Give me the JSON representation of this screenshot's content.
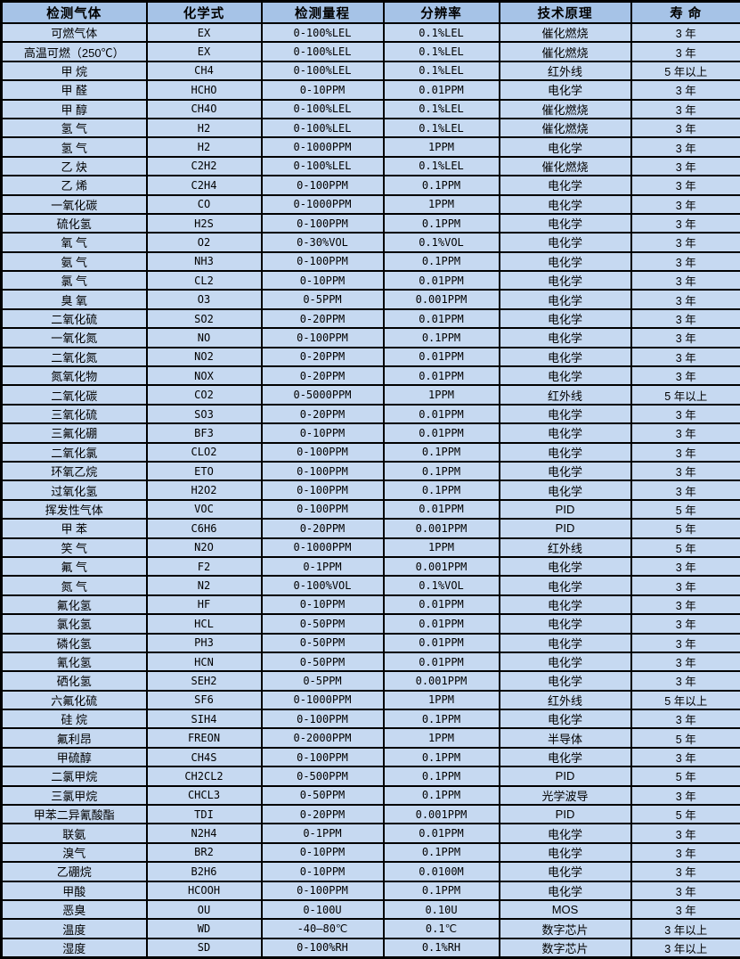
{
  "colors": {
    "header_bg": "#a6c3e7",
    "row_bg": "#c6d9f1",
    "border": "#000000",
    "text": "#000000"
  },
  "table": {
    "columns": [
      "检测气体",
      "化学式",
      "检测量程",
      "分辨率",
      "技术原理",
      "寿 命"
    ],
    "rows": [
      [
        "可燃气体",
        "EX",
        "0-100%LEL",
        "0.1%LEL",
        "催化燃烧",
        "3 年"
      ],
      [
        "高温可燃（250℃）",
        "EX",
        "0-100%LEL",
        "0.1%LEL",
        "催化燃烧",
        "3 年"
      ],
      [
        "甲 烷",
        "CH4",
        "0-100%LEL",
        "0.1%LEL",
        "红外线",
        "5 年以上"
      ],
      [
        "甲 醛",
        "HCHO",
        "0-10PPM",
        "0.01PPM",
        "电化学",
        "3 年"
      ],
      [
        "甲 醇",
        "CH4O",
        "0-100%LEL",
        "0.1%LEL",
        "催化燃烧",
        "3 年"
      ],
      [
        "氢 气",
        "H2",
        "0-100%LEL",
        "0.1%LEL",
        "催化燃烧",
        "3 年"
      ],
      [
        "氢 气",
        "H2",
        "0-1000PPM",
        "1PPM",
        "电化学",
        "3 年"
      ],
      [
        "乙 炔",
        "C2H2",
        "0-100%LEL",
        "0.1%LEL",
        "催化燃烧",
        "3 年"
      ],
      [
        "乙 烯",
        "C2H4",
        "0-100PPM",
        "0.1PPM",
        "电化学",
        "3 年"
      ],
      [
        "一氧化碳",
        "CO",
        "0-1000PPM",
        "1PPM",
        "电化学",
        "3 年"
      ],
      [
        "硫化氢",
        "H2S",
        "0-100PPM",
        "0.1PPM",
        "电化学",
        "3 年"
      ],
      [
        "氧 气",
        "O2",
        "0-30%VOL",
        "0.1%VOL",
        "电化学",
        "3 年"
      ],
      [
        "氨 气",
        "NH3",
        "0-100PPM",
        "0.1PPM",
        "电化学",
        "3 年"
      ],
      [
        "氯 气",
        "CL2",
        "0-10PPM",
        "0.01PPM",
        "电化学",
        "3 年"
      ],
      [
        "臭 氧",
        "O3",
        "0-5PPM",
        "0.001PPM",
        "电化学",
        "3 年"
      ],
      [
        "二氧化硫",
        "SO2",
        "0-20PPM",
        "0.01PPM",
        "电化学",
        "3 年"
      ],
      [
        "一氧化氮",
        "NO",
        "0-100PPM",
        "0.1PPM",
        "电化学",
        "3 年"
      ],
      [
        "二氧化氮",
        "NO2",
        "0-20PPM",
        "0.01PPM",
        "电化学",
        "3 年"
      ],
      [
        "氮氧化物",
        "NOX",
        "0-20PPM",
        "0.01PPM",
        "电化学",
        "3 年"
      ],
      [
        "二氧化碳",
        "CO2",
        "0-5000PPM",
        "1PPM",
        "红外线",
        "5 年以上"
      ],
      [
        "三氧化硫",
        "SO3",
        "0-20PPM",
        "0.01PPM",
        "电化学",
        "3 年"
      ],
      [
        "三氟化硼",
        "BF3",
        "0-10PPM",
        "0.01PPM",
        "电化学",
        "3 年"
      ],
      [
        "二氧化氯",
        "CLO2",
        "0-100PPM",
        "0.1PPM",
        "电化学",
        "3 年"
      ],
      [
        "环氧乙烷",
        "ETO",
        "0-100PPM",
        "0.1PPM",
        "电化学",
        "3 年"
      ],
      [
        "过氧化氢",
        "H2O2",
        "0-100PPM",
        "0.1PPM",
        "电化学",
        "3 年"
      ],
      [
        "挥发性气体",
        "VOC",
        "0-100PPM",
        "0.01PPM",
        "PID",
        "5 年"
      ],
      [
        "甲 苯",
        "C6H6",
        "0-20PPM",
        "0.001PPM",
        "PID",
        "5 年"
      ],
      [
        "笑 气",
        "N2O",
        "0-1000PPM",
        "1PPM",
        "红外线",
        "5 年"
      ],
      [
        "氟 气",
        "F2",
        "0-1PPM",
        "0.001PPM",
        "电化学",
        "3 年"
      ],
      [
        "氮 气",
        "N2",
        "0-100%VOL",
        "0.1%VOL",
        "电化学",
        "3 年"
      ],
      [
        "氟化氢",
        "HF",
        "0-10PPM",
        "0.01PPM",
        "电化学",
        "3 年"
      ],
      [
        "氯化氢",
        "HCL",
        "0-50PPM",
        "0.01PPM",
        "电化学",
        "3 年"
      ],
      [
        "磷化氢",
        "PH3",
        "0-50PPM",
        "0.01PPM",
        "电化学",
        "3 年"
      ],
      [
        "氰化氢",
        "HCN",
        "0-50PPM",
        "0.01PPM",
        "电化学",
        "3 年"
      ],
      [
        "硒化氢",
        "SEH2",
        "0-5PPM",
        "0.001PPM",
        "电化学",
        "3 年"
      ],
      [
        "六氟化硫",
        "SF6",
        "0-1000PPM",
        "1PPM",
        "红外线",
        "5 年以上"
      ],
      [
        "硅 烷",
        "SIH4",
        "0-100PPM",
        "0.1PPM",
        "电化学",
        "3 年"
      ],
      [
        "氟利昂",
        "FREON",
        "0-2000PPM",
        "1PPM",
        "半导体",
        "5 年"
      ],
      [
        "甲硫醇",
        "CH4S",
        "0-100PPM",
        "0.1PPM",
        "电化学",
        "3 年"
      ],
      [
        "二氯甲烷",
        "CH2CL2",
        "0-500PPM",
        "0.1PPM",
        "PID",
        "5 年"
      ],
      [
        "三氯甲烷",
        "CHCL3",
        "0-50PPM",
        "0.1PPM",
        "光学波导",
        "3 年"
      ],
      [
        "甲苯二异氰酸酯",
        "TDI",
        "0-20PPM",
        "0.001PPM",
        "PID",
        "5 年"
      ],
      [
        "联氨",
        "N2H4",
        "0-1PPM",
        "0.01PPM",
        "电化学",
        "3 年"
      ],
      [
        "溴气",
        "BR2",
        "0-10PPM",
        "0.1PPM",
        "电化学",
        "3 年"
      ],
      [
        "乙硼烷",
        "B2H6",
        "0-10PPM",
        "0.0100M",
        "电化学",
        "3 年"
      ],
      [
        "甲酸",
        "HCOOH",
        "0-100PPM",
        "0.1PPM",
        "电化学",
        "3 年"
      ],
      [
        "恶臭",
        "OU",
        "0-100U",
        "0.10U",
        "MOS",
        "3 年"
      ],
      [
        "温度",
        "WD",
        "-40—80℃",
        "0.1℃",
        "数字芯片",
        "3 年以上"
      ],
      [
        "湿度",
        "SD",
        "0-100%RH",
        "0.1%RH",
        "数字芯片",
        "3 年以上"
      ]
    ]
  }
}
